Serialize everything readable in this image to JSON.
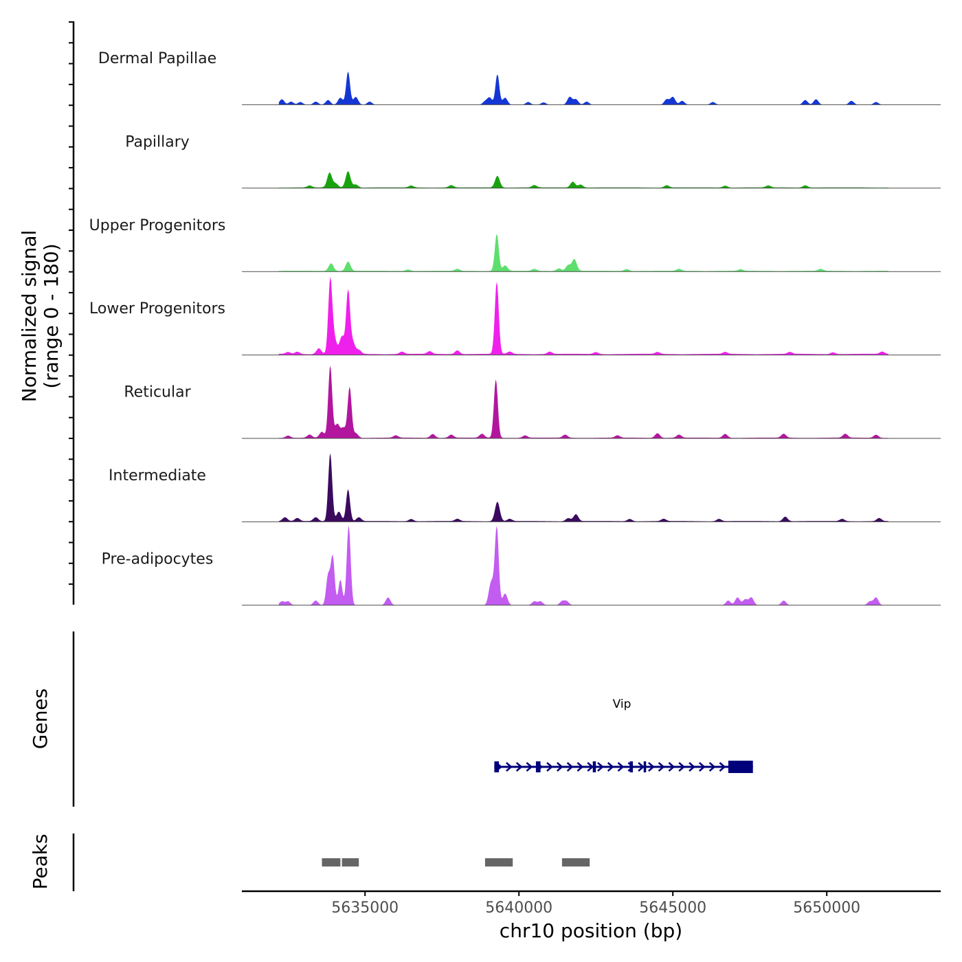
{
  "chart_data": {
    "type": "area",
    "title": "",
    "ylabel_line1": "Normalized signal",
    "ylabel_line2": "(range 0 - 180)",
    "ylim": [
      0,
      180
    ],
    "xlabel": "chr10 position (bp)",
    "xlim": [
      5631000,
      5653700
    ],
    "xticks": [
      5635000,
      5640000,
      5645000,
      5650000
    ],
    "xtick_labels": [
      "5635000",
      "5640000",
      "5645000",
      "5650000"
    ],
    "genes_label": "Genes",
    "peaks_label": "Peaks",
    "series": [
      {
        "name": "Dermal Papillae",
        "color": "#1437d4",
        "baseline": 0,
        "peaks": [
          {
            "pos": 5632300,
            "h": 14
          },
          {
            "pos": 5632600,
            "h": 8
          },
          {
            "pos": 5632900,
            "h": 7
          },
          {
            "pos": 5633400,
            "h": 8
          },
          {
            "pos": 5633800,
            "h": 12
          },
          {
            "pos": 5634200,
            "h": 18
          },
          {
            "pos": 5634450,
            "h": 85
          },
          {
            "pos": 5634700,
            "h": 20
          },
          {
            "pos": 5635150,
            "h": 8
          },
          {
            "pos": 5638900,
            "h": 8
          },
          {
            "pos": 5639050,
            "h": 18
          },
          {
            "pos": 5639300,
            "h": 78
          },
          {
            "pos": 5639550,
            "h": 18
          },
          {
            "pos": 5640300,
            "h": 7
          },
          {
            "pos": 5640800,
            "h": 6
          },
          {
            "pos": 5641650,
            "h": 20
          },
          {
            "pos": 5641850,
            "h": 14
          },
          {
            "pos": 5642200,
            "h": 8
          },
          {
            "pos": 5644800,
            "h": 14
          },
          {
            "pos": 5645000,
            "h": 20
          },
          {
            "pos": 5645300,
            "h": 10
          },
          {
            "pos": 5646300,
            "h": 7
          },
          {
            "pos": 5649300,
            "h": 12
          },
          {
            "pos": 5649650,
            "h": 14
          },
          {
            "pos": 5650800,
            "h": 10
          },
          {
            "pos": 5651600,
            "h": 7
          }
        ]
      },
      {
        "name": "Papillary",
        "color": "#18a30e",
        "baseline": 2,
        "peaks": [
          {
            "pos": 5633200,
            "h": 5
          },
          {
            "pos": 5633850,
            "h": 38
          },
          {
            "pos": 5634050,
            "h": 10
          },
          {
            "pos": 5634450,
            "h": 42
          },
          {
            "pos": 5634700,
            "h": 8
          },
          {
            "pos": 5636500,
            "h": 5
          },
          {
            "pos": 5637800,
            "h": 6
          },
          {
            "pos": 5639300,
            "h": 30
          },
          {
            "pos": 5640500,
            "h": 6
          },
          {
            "pos": 5641750,
            "h": 15
          },
          {
            "pos": 5642000,
            "h": 8
          },
          {
            "pos": 5644800,
            "h": 6
          },
          {
            "pos": 5646700,
            "h": 5
          },
          {
            "pos": 5648100,
            "h": 5
          },
          {
            "pos": 5649300,
            "h": 6
          }
        ]
      },
      {
        "name": "Upper Progenitors",
        "color": "#5ede6d",
        "baseline": 2,
        "peaks": [
          {
            "pos": 5633900,
            "h": 20
          },
          {
            "pos": 5634450,
            "h": 24
          },
          {
            "pos": 5636400,
            "h": 4
          },
          {
            "pos": 5638000,
            "h": 5
          },
          {
            "pos": 5639280,
            "h": 95
          },
          {
            "pos": 5639550,
            "h": 14
          },
          {
            "pos": 5640500,
            "h": 5
          },
          {
            "pos": 5641300,
            "h": 7
          },
          {
            "pos": 5641600,
            "h": 15
          },
          {
            "pos": 5641800,
            "h": 30
          },
          {
            "pos": 5643500,
            "h": 5
          },
          {
            "pos": 5645200,
            "h": 5
          },
          {
            "pos": 5647200,
            "h": 4
          },
          {
            "pos": 5649800,
            "h": 5
          }
        ]
      },
      {
        "name": "Lower Progenitors",
        "color": "#f020ec",
        "baseline": 3,
        "peaks": [
          {
            "pos": 5632500,
            "h": 5
          },
          {
            "pos": 5632800,
            "h": 6
          },
          {
            "pos": 5633500,
            "h": 15
          },
          {
            "pos": 5633870,
            "h": 188
          },
          {
            "pos": 5634000,
            "h": 40
          },
          {
            "pos": 5634250,
            "h": 45
          },
          {
            "pos": 5634450,
            "h": 160
          },
          {
            "pos": 5634600,
            "h": 30
          },
          {
            "pos": 5634800,
            "h": 10
          },
          {
            "pos": 5636200,
            "h": 6
          },
          {
            "pos": 5637100,
            "h": 7
          },
          {
            "pos": 5638000,
            "h": 10
          },
          {
            "pos": 5639280,
            "h": 185
          },
          {
            "pos": 5639700,
            "h": 6
          },
          {
            "pos": 5641000,
            "h": 6
          },
          {
            "pos": 5642500,
            "h": 5
          },
          {
            "pos": 5644500,
            "h": 5
          },
          {
            "pos": 5646700,
            "h": 5
          },
          {
            "pos": 5648800,
            "h": 5
          },
          {
            "pos": 5650200,
            "h": 5
          },
          {
            "pos": 5651800,
            "h": 6
          }
        ]
      },
      {
        "name": "Reticular",
        "color": "#b2169e",
        "baseline": 2,
        "peaks": [
          {
            "pos": 5632500,
            "h": 6
          },
          {
            "pos": 5633200,
            "h": 8
          },
          {
            "pos": 5633600,
            "h": 15
          },
          {
            "pos": 5633870,
            "h": 185
          },
          {
            "pos": 5634100,
            "h": 35
          },
          {
            "pos": 5634300,
            "h": 25
          },
          {
            "pos": 5634500,
            "h": 130
          },
          {
            "pos": 5634700,
            "h": 12
          },
          {
            "pos": 5636000,
            "h": 6
          },
          {
            "pos": 5637200,
            "h": 10
          },
          {
            "pos": 5637800,
            "h": 8
          },
          {
            "pos": 5638800,
            "h": 10
          },
          {
            "pos": 5639250,
            "h": 150
          },
          {
            "pos": 5640200,
            "h": 6
          },
          {
            "pos": 5641500,
            "h": 8
          },
          {
            "pos": 5643200,
            "h": 6
          },
          {
            "pos": 5644500,
            "h": 12
          },
          {
            "pos": 5645200,
            "h": 8
          },
          {
            "pos": 5646700,
            "h": 10
          },
          {
            "pos": 5648600,
            "h": 10
          },
          {
            "pos": 5650600,
            "h": 10
          },
          {
            "pos": 5651600,
            "h": 8
          }
        ]
      },
      {
        "name": "Intermediate",
        "color": "#3b0a5e",
        "baseline": 2,
        "peaks": [
          {
            "pos": 5632400,
            "h": 10
          },
          {
            "pos": 5632800,
            "h": 8
          },
          {
            "pos": 5633400,
            "h": 10
          },
          {
            "pos": 5633870,
            "h": 175
          },
          {
            "pos": 5634150,
            "h": 25
          },
          {
            "pos": 5634450,
            "h": 82
          },
          {
            "pos": 5634800,
            "h": 10
          },
          {
            "pos": 5636500,
            "h": 6
          },
          {
            "pos": 5638000,
            "h": 6
          },
          {
            "pos": 5639300,
            "h": 50
          },
          {
            "pos": 5639700,
            "h": 6
          },
          {
            "pos": 5641600,
            "h": 8
          },
          {
            "pos": 5641850,
            "h": 18
          },
          {
            "pos": 5643600,
            "h": 6
          },
          {
            "pos": 5644700,
            "h": 6
          },
          {
            "pos": 5646500,
            "h": 6
          },
          {
            "pos": 5648650,
            "h": 12
          },
          {
            "pos": 5650500,
            "h": 6
          },
          {
            "pos": 5651700,
            "h": 8
          }
        ]
      },
      {
        "name": "Pre-adipocytes",
        "color": "#c35cf0",
        "baseline": 0,
        "peaks": [
          {
            "pos": 5632300,
            "h": 10
          },
          {
            "pos": 5632500,
            "h": 10
          },
          {
            "pos": 5633400,
            "h": 12
          },
          {
            "pos": 5633800,
            "h": 75
          },
          {
            "pos": 5633950,
            "h": 125
          },
          {
            "pos": 5634200,
            "h": 65
          },
          {
            "pos": 5634470,
            "h": 205
          },
          {
            "pos": 5635750,
            "h": 20
          },
          {
            "pos": 5639100,
            "h": 60
          },
          {
            "pos": 5639280,
            "h": 200
          },
          {
            "pos": 5639550,
            "h": 30
          },
          {
            "pos": 5640500,
            "h": 10
          },
          {
            "pos": 5640700,
            "h": 10
          },
          {
            "pos": 5641400,
            "h": 10
          },
          {
            "pos": 5641550,
            "h": 10
          },
          {
            "pos": 5646800,
            "h": 12
          },
          {
            "pos": 5647100,
            "h": 20
          },
          {
            "pos": 5647350,
            "h": 15
          },
          {
            "pos": 5647550,
            "h": 20
          },
          {
            "pos": 5648600,
            "h": 12
          },
          {
            "pos": 5651400,
            "h": 10
          },
          {
            "pos": 5651600,
            "h": 20
          }
        ]
      }
    ],
    "gene": {
      "name": "Vip",
      "strand": "+",
      "color": "#00007a",
      "start": 5639200,
      "end": 5647600,
      "exons": [
        {
          "start": 5639200,
          "end": 5639350
        },
        {
          "start": 5640550,
          "end": 5640700
        },
        {
          "start": 5642400,
          "end": 5642500
        },
        {
          "start": 5643600,
          "end": 5643700
        },
        {
          "start": 5644050,
          "end": 5644130
        },
        {
          "start": 5646800,
          "end": 5647600
        }
      ]
    },
    "peak_regions": {
      "color": "#666666",
      "regions": [
        {
          "start": 5633600,
          "end": 5634200
        },
        {
          "start": 5634250,
          "end": 5634800
        },
        {
          "start": 5638900,
          "end": 5639800
        },
        {
          "start": 5641400,
          "end": 5642300
        }
      ]
    }
  }
}
